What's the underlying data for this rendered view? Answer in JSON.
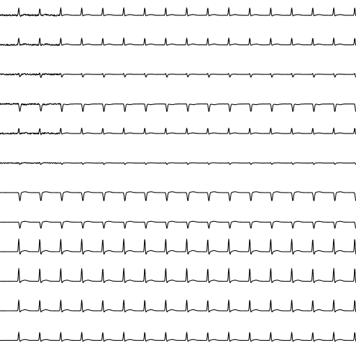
{
  "chart_data": {
    "type": "line",
    "title": "",
    "xlabel": "",
    "ylabel": "",
    "grid": false,
    "legend": "none",
    "line_color": "#000000",
    "background": "#ffffff",
    "beats_per_trace": 17,
    "series": [
      {
        "lead_index": 1,
        "r_amp": 0.55,
        "s_amp": 0.05,
        "t_amp": 0.05,
        "noise": 0.12,
        "noisy_fraction": 0.17
      },
      {
        "lead_index": 2,
        "r_amp": 0.5,
        "s_amp": 0.04,
        "t_amp": 0.06,
        "noise": 0.1,
        "noisy_fraction": 0.17
      },
      {
        "lead_index": 3,
        "r_amp": 0.1,
        "s_amp": 0.2,
        "t_amp": 0.02,
        "noise": 0.1,
        "noisy_fraction": 0.17
      },
      {
        "lead_index": 4,
        "r_amp": 0.05,
        "s_amp": 0.55,
        "t_amp": -0.05,
        "noise": 0.1,
        "noisy_fraction": 0.17
      },
      {
        "lead_index": 5,
        "r_amp": 0.4,
        "s_amp": 0.05,
        "t_amp": 0.04,
        "noise": 0.1,
        "noisy_fraction": 0.17
      },
      {
        "lead_index": 6,
        "r_amp": 0.05,
        "s_amp": 0.1,
        "t_amp": 0.02,
        "noise": 0.06,
        "noisy_fraction": 0.17
      },
      {
        "lead_index": 7,
        "r_amp": 0.03,
        "s_amp": 0.6,
        "t_amp": 0.06,
        "noise": 0.02,
        "noisy_fraction": 0.0
      },
      {
        "lead_index": 8,
        "r_amp": 0.05,
        "s_amp": 0.45,
        "t_amp": 0.06,
        "noise": 0.02,
        "noisy_fraction": 0.0
      },
      {
        "lead_index": 9,
        "r_amp": 0.95,
        "s_amp": 0.2,
        "t_amp": 0.08,
        "noise": 0.02,
        "noisy_fraction": 0.0
      },
      {
        "lead_index": 10,
        "r_amp": 0.95,
        "s_amp": 0.12,
        "t_amp": 0.08,
        "noise": 0.02,
        "noisy_fraction": 0.0
      },
      {
        "lead_index": 11,
        "r_amp": 0.8,
        "s_amp": 0.1,
        "t_amp": 0.08,
        "noise": 0.02,
        "noisy_fraction": 0.0
      },
      {
        "lead_index": 12,
        "r_amp": 0.6,
        "s_amp": 0.08,
        "t_amp": 0.06,
        "noise": 0.02,
        "noisy_fraction": 0.0
      }
    ]
  }
}
